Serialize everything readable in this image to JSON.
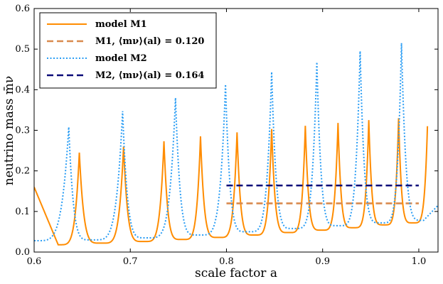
{
  "chart_data": {
    "type": "line",
    "xlabel": "scale factor a",
    "ylabel": "neutrino mass m̄ν",
    "xlim": [
      0.6,
      1.02
    ],
    "ylim": [
      0.0,
      0.6
    ],
    "xticks": [
      "0.6",
      "0.7",
      "0.8",
      "0.9",
      "1.0"
    ],
    "yticks": [
      "0.0",
      "0.1",
      "0.2",
      "0.3",
      "0.4",
      "0.5",
      "0.6"
    ],
    "legend_position": "top-left",
    "series": [
      {
        "name": "model M1",
        "style": "solid",
        "color": "#ff8c00",
        "baseline": 0.02,
        "peaks": [
          {
            "x": 0.647,
            "y": 0.245
          },
          {
            "x": 0.693,
            "y": 0.26
          },
          {
            "x": 0.735,
            "y": 0.273
          },
          {
            "x": 0.773,
            "y": 0.285
          },
          {
            "x": 0.811,
            "y": 0.295
          },
          {
            "x": 0.847,
            "y": 0.303
          },
          {
            "x": 0.882,
            "y": 0.311
          },
          {
            "x": 0.916,
            "y": 0.318
          },
          {
            "x": 0.948,
            "y": 0.325
          },
          {
            "x": 0.979,
            "y": 0.33
          },
          {
            "x": 1.009,
            "y": 0.31
          }
        ],
        "minima": [
          {
            "x": 0.6,
            "y": 0.16
          },
          {
            "x": 0.625,
            "y": 0.018
          },
          {
            "x": 0.67,
            "y": 0.022
          },
          {
            "x": 0.714,
            "y": 0.026
          },
          {
            "x": 0.754,
            "y": 0.031
          },
          {
            "x": 0.792,
            "y": 0.036
          },
          {
            "x": 0.829,
            "y": 0.042
          },
          {
            "x": 0.865,
            "y": 0.048
          },
          {
            "x": 0.899,
            "y": 0.054
          },
          {
            "x": 0.932,
            "y": 0.06
          },
          {
            "x": 0.964,
            "y": 0.067
          },
          {
            "x": 0.994,
            "y": 0.072
          }
        ]
      },
      {
        "name": "M1, ⟨mν⟩(al) = 0.120",
        "style": "dashed",
        "color": "#d98a4e",
        "x": [
          0.8,
          1.0
        ],
        "y": [
          0.12,
          0.12
        ]
      },
      {
        "name": "model M2",
        "style": "dotted",
        "color": "#2a9df4",
        "peaks": [
          {
            "x": 0.636,
            "y": 0.308
          },
          {
            "x": 0.692,
            "y": 0.347
          },
          {
            "x": 0.747,
            "y": 0.38
          },
          {
            "x": 0.799,
            "y": 0.413
          },
          {
            "x": 0.847,
            "y": 0.444
          },
          {
            "x": 0.894,
            "y": 0.468
          },
          {
            "x": 0.939,
            "y": 0.495
          },
          {
            "x": 0.982,
            "y": 0.515
          }
        ],
        "minima": [
          {
            "x": 0.6,
            "y": 0.028
          },
          {
            "x": 0.66,
            "y": 0.03
          },
          {
            "x": 0.717,
            "y": 0.035
          },
          {
            "x": 0.771,
            "y": 0.042
          },
          {
            "x": 0.822,
            "y": 0.05
          },
          {
            "x": 0.87,
            "y": 0.058
          },
          {
            "x": 0.916,
            "y": 0.065
          },
          {
            "x": 0.961,
            "y": 0.072
          },
          {
            "x": 1.005,
            "y": 0.078
          },
          {
            "x": 1.02,
            "y": 0.115
          }
        ]
      },
      {
        "name": "M2, ⟨mν⟩(al) = 0.164",
        "style": "dashed",
        "color": "#0a0a78",
        "x": [
          0.8,
          1.0
        ],
        "y": [
          0.164,
          0.164
        ]
      }
    ]
  }
}
